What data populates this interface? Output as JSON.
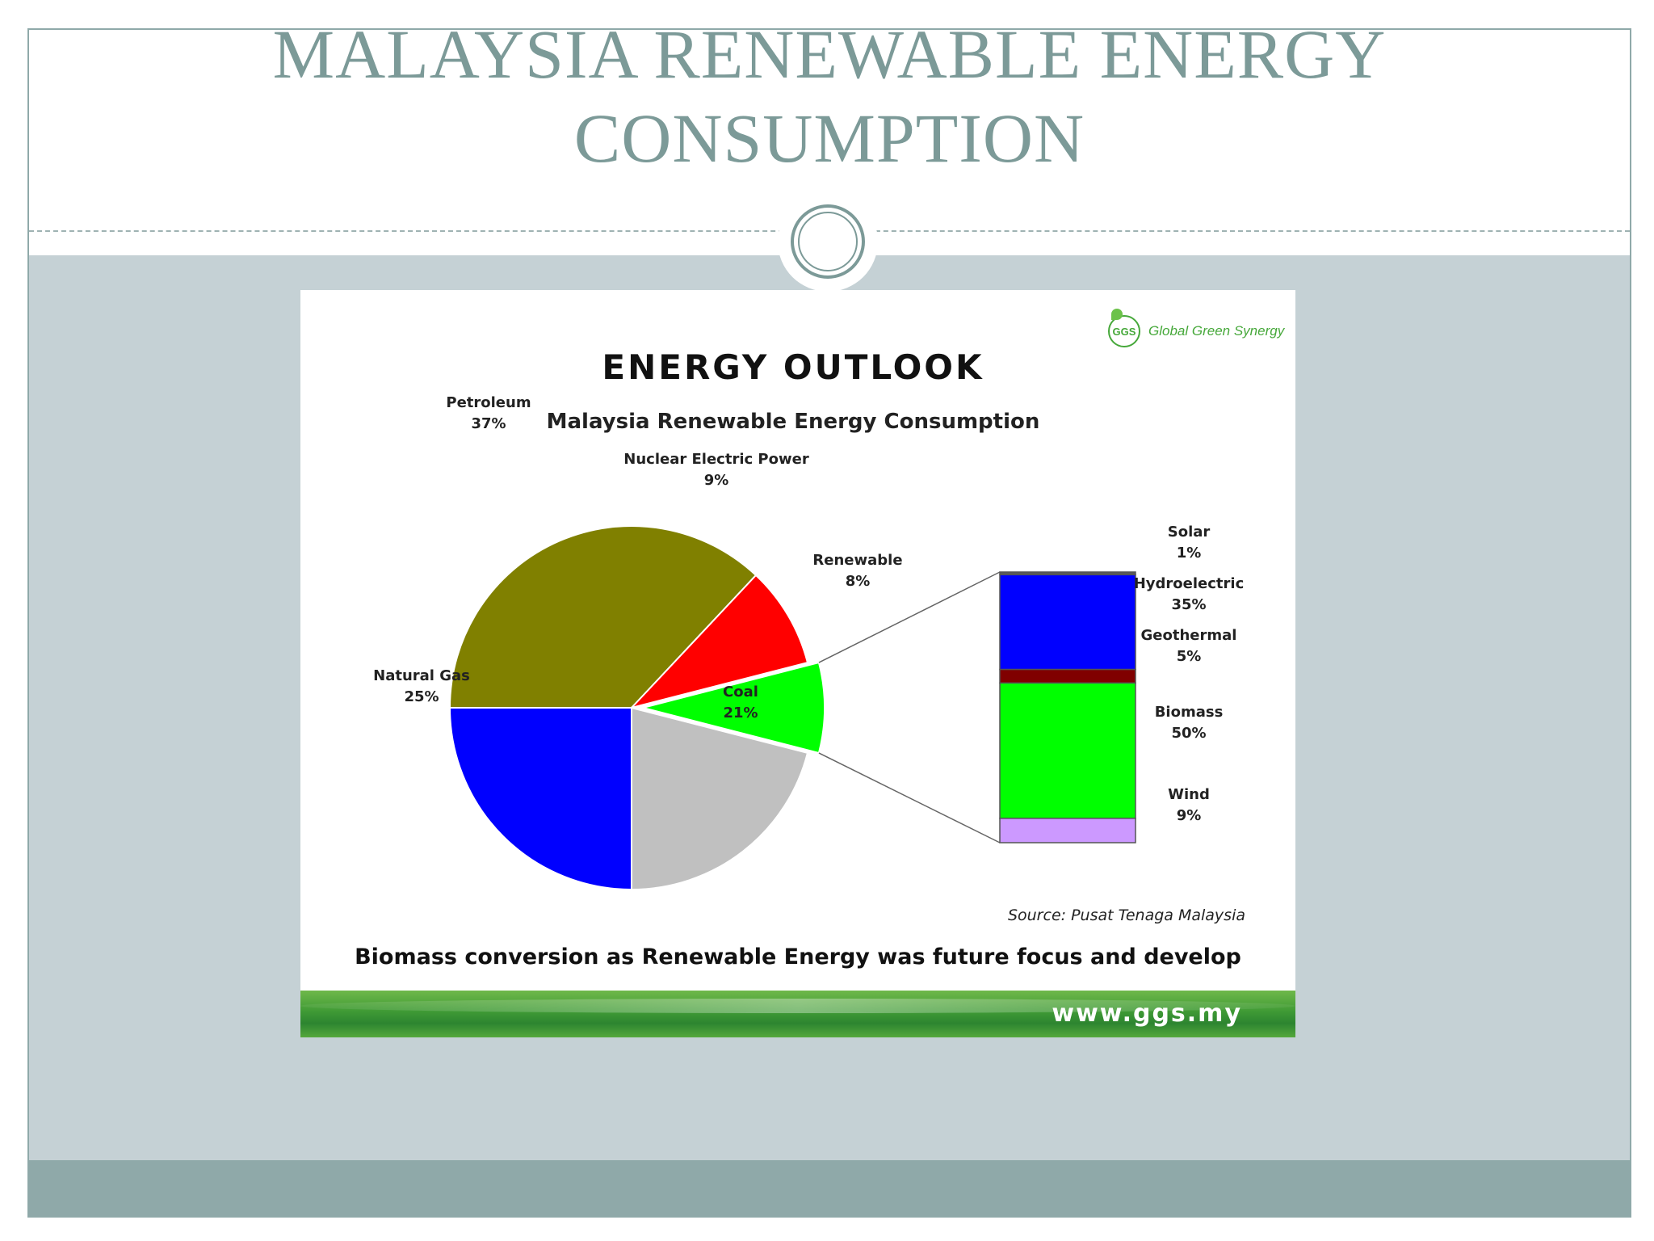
{
  "slide": {
    "title": "MALAYSIA RENEWABLE ENERGY CONSUMPTION"
  },
  "image": {
    "logo_mark": "GGS",
    "logo_text": "Global Green Synergy",
    "heading": "ENERGY OUTLOOK",
    "subtitle": "Malaysia Renewable Energy Consumption",
    "source": "Source: Pusat Tenaga Malaysia",
    "caption": "Biomass conversion as Renewable Energy was future focus and develop",
    "url": "www.ggs.my"
  },
  "colors": {
    "title_text": "#7c9a98",
    "content_band": "#c5d1d5",
    "footer_band": "#8fa9a9",
    "green_banner": "#3f9a35"
  },
  "chart_data": [
    {
      "type": "pie",
      "title": "ENERGY OUTLOOK",
      "subtitle": "Malaysia Renewable Energy Consumption",
      "slices": [
        {
          "label": "Petroleum",
          "value": 37,
          "display": "37%",
          "color": "#808000"
        },
        {
          "label": "Nuclear Electric Power",
          "value": 9,
          "display": "9%",
          "color": "#ff0000"
        },
        {
          "label": "Renewable",
          "value": 8,
          "display": "8%",
          "color": "#00ff00",
          "exploded": true
        },
        {
          "label": "Coal",
          "value": 21,
          "display": "21%",
          "color": "#c0c0c0"
        },
        {
          "label": "Natural Gas",
          "value": 25,
          "display": "25%",
          "color": "#0000ff"
        }
      ]
    },
    {
      "type": "bar",
      "stacked": true,
      "breakdown_of": "Renewable",
      "segments": [
        {
          "label": "Solar",
          "value": 1,
          "display": "1%",
          "color": "#5a5a5a"
        },
        {
          "label": "Hydroelectric",
          "value": 35,
          "display": "35%",
          "color": "#0000ff"
        },
        {
          "label": "Geothermal",
          "value": 5,
          "display": "5%",
          "color": "#800000"
        },
        {
          "label": "Biomass",
          "value": 50,
          "display": "50%",
          "color": "#00ff00"
        },
        {
          "label": "Wind",
          "value": 9,
          "display": "9%",
          "color": "#cc99ff"
        }
      ]
    }
  ]
}
